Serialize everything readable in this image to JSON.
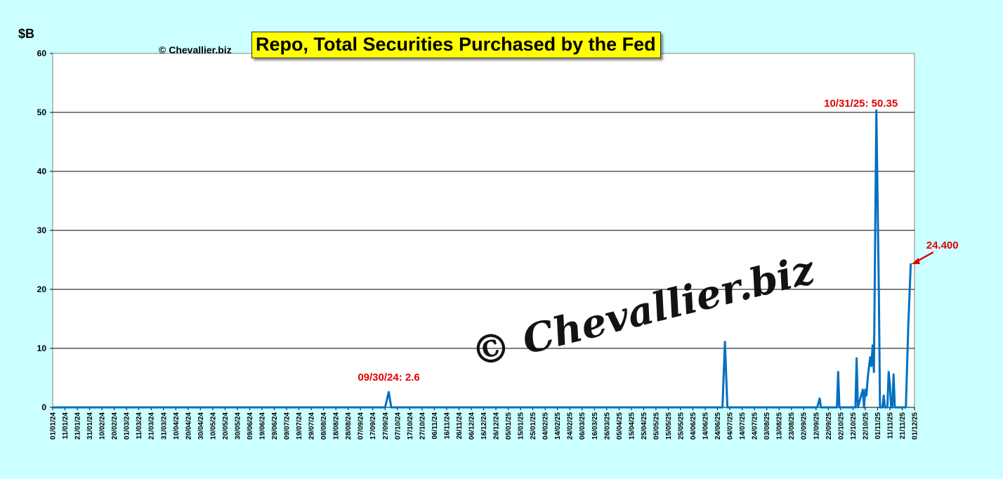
{
  "ylabel": "$B",
  "copyright_small": "© Chevallier.biz",
  "watermark": "© Chevallier.biz",
  "colors": {
    "background": "#ccffff",
    "plot": "#ffffff",
    "line": "#0070c0",
    "annotation": "#e00000",
    "title_bg": "#ffff00"
  },
  "chart_data": {
    "type": "line",
    "title": "Repo, Total Securities Purchased by the Fed",
    "xlabel": "",
    "ylabel": "$B",
    "ylim": [
      0,
      60
    ],
    "yticks": [
      0,
      10,
      20,
      30,
      40,
      50,
      60
    ],
    "grid": "horizontal",
    "x_start": "01/01/24",
    "x_end": "01/12/25",
    "x_tick_labels": [
      "01/01/24",
      "11/01/24",
      "21/01/24",
      "31/01/24",
      "10/02/24",
      "20/02/24",
      "01/03/24",
      "11/03/24",
      "21/03/24",
      "31/03/24",
      "10/04/24",
      "20/04/24",
      "30/04/24",
      "10/05/24",
      "20/05/24",
      "30/05/24",
      "09/06/24",
      "19/06/24",
      "29/06/24",
      "09/07/24",
      "19/07/24",
      "29/07/24",
      "08/08/24",
      "18/08/24",
      "28/08/24",
      "07/09/24",
      "17/09/24",
      "27/09/24",
      "07/10/24",
      "17/10/24",
      "27/10/24",
      "06/11/24",
      "16/11/24",
      "26/11/24",
      "06/12/24",
      "16/12/24",
      "26/12/24",
      "05/01/25",
      "15/01/25",
      "25/01/25",
      "04/02/25",
      "14/02/25",
      "24/02/25",
      "06/03/25",
      "16/03/25",
      "26/03/25",
      "05/04/25",
      "15/04/25",
      "25/04/25",
      "05/05/25",
      "15/05/25",
      "25/05/25",
      "04/06/25",
      "14/06/25",
      "24/06/25",
      "04/07/25",
      "14/07/25",
      "24/07/25",
      "03/08/25",
      "13/08/25",
      "23/08/25",
      "02/09/25",
      "12/09/25",
      "22/09/25",
      "02/10/25",
      "12/10/25",
      "22/10/25",
      "01/11/25",
      "11/11/25",
      "21/11/25",
      "01/12/25"
    ],
    "series": [
      {
        "points": [
          [
            "01/01/24",
            0
          ],
          [
            "27/09/24",
            0
          ],
          [
            "30/09/24",
            2.6
          ],
          [
            "02/10/24",
            0
          ],
          [
            "28/06/25",
            0
          ],
          [
            "30/06/25",
            11.1
          ],
          [
            "02/07/25",
            0
          ],
          [
            "13/09/25",
            0
          ],
          [
            "15/09/25",
            1.5
          ],
          [
            "16/09/25",
            0
          ],
          [
            "29/09/25",
            0
          ],
          [
            "30/09/25",
            6.0
          ],
          [
            "01/10/25",
            0
          ],
          [
            "14/10/25",
            0
          ],
          [
            "15/10/25",
            8.3
          ],
          [
            "16/10/25",
            0
          ],
          [
            "20/10/25",
            3.0
          ],
          [
            "21/10/25",
            0
          ],
          [
            "22/10/25",
            3.0
          ],
          [
            "23/10/25",
            2.0
          ],
          [
            "24/10/25",
            5.0
          ],
          [
            "26/10/25",
            8.5
          ],
          [
            "27/10/25",
            7.0
          ],
          [
            "28/10/25",
            10.5
          ],
          [
            "29/10/25",
            6.0
          ],
          [
            "31/10/25",
            50.35
          ],
          [
            "02/11/25",
            20.0
          ],
          [
            "03/11/25",
            0
          ],
          [
            "05/11/25",
            0
          ],
          [
            "06/11/25",
            2.0
          ],
          [
            "07/11/25",
            0
          ],
          [
            "09/11/25",
            0
          ],
          [
            "10/11/25",
            6.0
          ],
          [
            "11/11/25",
            4.0
          ],
          [
            "12/11/25",
            0
          ],
          [
            "13/11/25",
            0
          ],
          [
            "14/11/25",
            5.6
          ],
          [
            "15/11/25",
            0
          ],
          [
            "24/11/25",
            0
          ],
          [
            "26/11/25",
            14.0
          ],
          [
            "28/11/25",
            24.4
          ]
        ]
      }
    ],
    "annotations": [
      {
        "text": "09/30/24: 2.6",
        "x": "30/09/24",
        "y": 2.6
      },
      {
        "text": "10/31/25: 50.35",
        "x": "31/10/25",
        "y": 50.35
      },
      {
        "text": "24.400",
        "x": "28/11/25",
        "y": 24.4,
        "arrow": true
      }
    ]
  }
}
